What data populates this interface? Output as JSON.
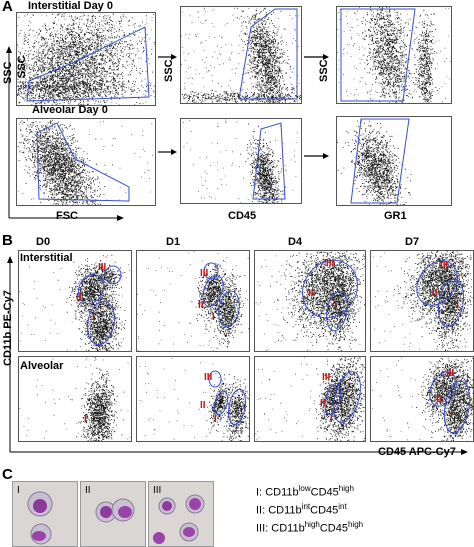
{
  "panel_a": {
    "letter": "A",
    "row1_title": "Interstitial Day 0",
    "row2_title": "Alveolar Day 0",
    "y_label": "SSC",
    "x_labels": [
      "FSC",
      "CD45",
      "GR1"
    ]
  },
  "panel_b": {
    "letter": "B",
    "columns": [
      "D0",
      "D1",
      "D4",
      "D7"
    ],
    "row1_title": "Interstitial",
    "row2_title": "Alveolar",
    "y_label": "CD11b PE-Cy7",
    "x_label": "CD45 APC-Cy7",
    "gate_labels": [
      "I",
      "II",
      "III"
    ]
  },
  "panel_c": {
    "letter": "C",
    "images": [
      "I",
      "II",
      "III"
    ],
    "legend": [
      {
        "key": "I:",
        "marker1": "CD11b",
        "sup1": "low",
        "marker2": "CD45",
        "sup2": "high"
      },
      {
        "key": "II:",
        "marker1": "CD11b",
        "sup1": "int",
        "marker2": "CD45",
        "sup2": "int"
      },
      {
        "key": "III:",
        "marker1": "CD11b",
        "sup1": "high",
        "marker2": "CD45",
        "sup2": "high"
      }
    ]
  },
  "colors": {
    "gate": "#3a4fd0",
    "label_red": "#d01010",
    "dots": "#111111"
  }
}
